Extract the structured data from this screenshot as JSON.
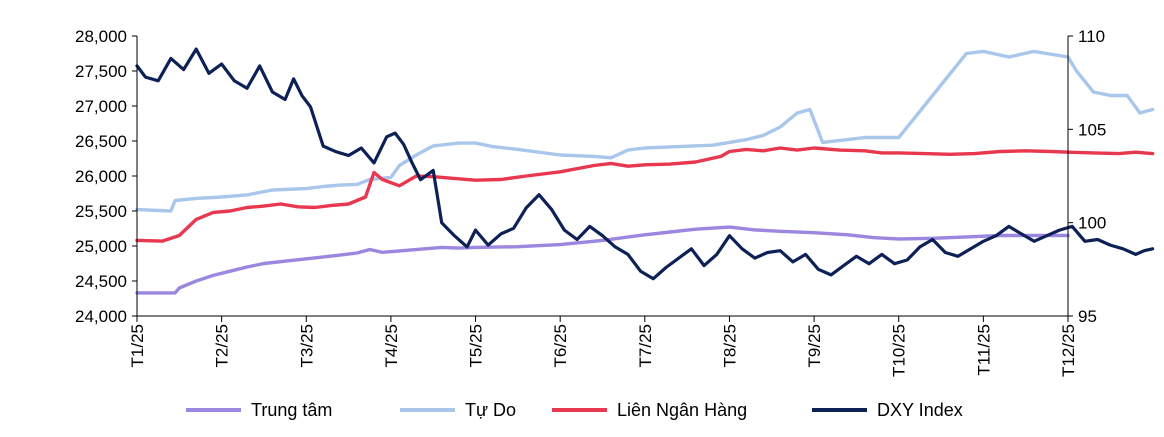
{
  "chart_data": {
    "type": "line",
    "title": "",
    "x_categories": [
      "T1/25",
      "T2/25",
      "T3/25",
      "T4/25",
      "T5/25",
      "T6/25",
      "T7/25",
      "T8/25",
      "T9/25",
      "T10/25",
      "T11/25",
      "T12/25"
    ],
    "y_left": {
      "min": 24000,
      "max": 28000,
      "ticks": [
        24000,
        24500,
        25000,
        25500,
        26000,
        26500,
        27000,
        27500,
        28000
      ],
      "tick_labels": [
        "24,000",
        "24,500",
        "25,000",
        "25,500",
        "26,000",
        "26,500",
        "27,000",
        "27,500",
        "28,000"
      ]
    },
    "y_right": {
      "min": 95,
      "max": 110,
      "ticks": [
        95,
        100,
        105,
        110
      ],
      "tick_labels": [
        "95",
        "100",
        "105",
        "110"
      ]
    },
    "legend_position": "bottom",
    "series": [
      {
        "name": "Trung tâm",
        "axis": "left",
        "color": "#9b87e0",
        "points": [
          [
            0,
            24330
          ],
          [
            0.45,
            24330
          ],
          [
            0.5,
            24400
          ],
          [
            0.7,
            24500
          ],
          [
            0.9,
            24580
          ],
          [
            1.1,
            24640
          ],
          [
            1.3,
            24700
          ],
          [
            1.5,
            24750
          ],
          [
            1.8,
            24790
          ],
          [
            2.1,
            24830
          ],
          [
            2.4,
            24870
          ],
          [
            2.6,
            24900
          ],
          [
            2.75,
            24950
          ],
          [
            2.9,
            24910
          ],
          [
            3.1,
            24930
          ],
          [
            3.4,
            24960
          ],
          [
            3.6,
            24980
          ],
          [
            3.8,
            24970
          ],
          [
            4.0,
            24980
          ],
          [
            4.5,
            24990
          ],
          [
            5.0,
            25020
          ],
          [
            5.5,
            25080
          ],
          [
            6.0,
            25160
          ],
          [
            6.3,
            25200
          ],
          [
            6.6,
            25240
          ],
          [
            7.0,
            25270
          ],
          [
            7.3,
            25230
          ],
          [
            7.6,
            25210
          ],
          [
            8.0,
            25190
          ],
          [
            8.4,
            25160
          ],
          [
            8.7,
            25120
          ],
          [
            9.0,
            25100
          ],
          [
            9.4,
            25110
          ],
          [
            9.8,
            25130
          ],
          [
            10.2,
            25150
          ],
          [
            10.6,
            25150
          ],
          [
            11.0,
            25150
          ]
        ]
      },
      {
        "name": "Tự Do",
        "axis": "left",
        "color": "#a9c7ea",
        "points": [
          [
            0,
            25520
          ],
          [
            0.4,
            25500
          ],
          [
            0.45,
            25650
          ],
          [
            0.7,
            25680
          ],
          [
            1.0,
            25700
          ],
          [
            1.3,
            25730
          ],
          [
            1.6,
            25800
          ],
          [
            2.0,
            25820
          ],
          [
            2.2,
            25850
          ],
          [
            2.4,
            25870
          ],
          [
            2.6,
            25880
          ],
          [
            2.75,
            25950
          ],
          [
            3.0,
            25980
          ],
          [
            3.1,
            26150
          ],
          [
            3.3,
            26300
          ],
          [
            3.5,
            26430
          ],
          [
            3.8,
            26470
          ],
          [
            4.0,
            26470
          ],
          [
            4.2,
            26420
          ],
          [
            4.5,
            26380
          ],
          [
            5.0,
            26300
          ],
          [
            5.4,
            26280
          ],
          [
            5.6,
            26260
          ],
          [
            5.8,
            26370
          ],
          [
            6.0,
            26400
          ],
          [
            6.4,
            26420
          ],
          [
            6.8,
            26440
          ],
          [
            7.0,
            26480
          ],
          [
            7.2,
            26520
          ],
          [
            7.4,
            26580
          ],
          [
            7.6,
            26700
          ],
          [
            7.8,
            26900
          ],
          [
            7.95,
            26950
          ],
          [
            8.1,
            26480
          ],
          [
            8.4,
            26520
          ],
          [
            8.6,
            26550
          ],
          [
            9.0,
            26550
          ],
          [
            9.2,
            26850
          ],
          [
            9.5,
            27300
          ],
          [
            9.8,
            27750
          ],
          [
            10.0,
            27780
          ],
          [
            10.3,
            27700
          ],
          [
            10.6,
            27780
          ],
          [
            11.0,
            27700
          ],
          [
            11.1,
            27500
          ],
          [
            11.3,
            27200
          ],
          [
            11.5,
            27150
          ],
          [
            11.7,
            27150
          ],
          [
            11.85,
            26900
          ],
          [
            12.0,
            26950
          ]
        ]
      },
      {
        "name": "Liên Ngân Hàng",
        "axis": "left",
        "color": "#e8384f",
        "points": [
          [
            0,
            25080
          ],
          [
            0.3,
            25070
          ],
          [
            0.5,
            25150
          ],
          [
            0.7,
            25380
          ],
          [
            0.9,
            25480
          ],
          [
            1.1,
            25500
          ],
          [
            1.3,
            25550
          ],
          [
            1.5,
            25570
          ],
          [
            1.7,
            25600
          ],
          [
            1.9,
            25560
          ],
          [
            2.1,
            25550
          ],
          [
            2.3,
            25580
          ],
          [
            2.5,
            25600
          ],
          [
            2.7,
            25700
          ],
          [
            2.8,
            26050
          ],
          [
            2.9,
            25950
          ],
          [
            3.1,
            25860
          ],
          [
            3.3,
            26000
          ],
          [
            3.5,
            25990
          ],
          [
            3.8,
            25960
          ],
          [
            4.0,
            25940
          ],
          [
            4.3,
            25950
          ],
          [
            4.6,
            26000
          ],
          [
            5.0,
            26060
          ],
          [
            5.4,
            26150
          ],
          [
            5.6,
            26180
          ],
          [
            5.8,
            26140
          ],
          [
            6.0,
            26160
          ],
          [
            6.3,
            26170
          ],
          [
            6.6,
            26200
          ],
          [
            6.9,
            26280
          ],
          [
            7.0,
            26350
          ],
          [
            7.2,
            26380
          ],
          [
            7.4,
            26360
          ],
          [
            7.6,
            26400
          ],
          [
            7.8,
            26370
          ],
          [
            8.0,
            26400
          ],
          [
            8.3,
            26370
          ],
          [
            8.6,
            26360
          ],
          [
            8.8,
            26330
          ],
          [
            9.0,
            26330
          ],
          [
            9.3,
            26320
          ],
          [
            9.6,
            26310
          ],
          [
            9.9,
            26320
          ],
          [
            10.2,
            26350
          ],
          [
            10.5,
            26360
          ],
          [
            10.8,
            26350
          ],
          [
            11.0,
            26340
          ],
          [
            11.3,
            26330
          ],
          [
            11.6,
            26320
          ],
          [
            11.8,
            26340
          ],
          [
            12.0,
            26320
          ]
        ]
      },
      {
        "name": "DXY Index",
        "axis": "right",
        "color": "#0d2157",
        "points": [
          [
            0,
            108.4
          ],
          [
            0.1,
            107.8
          ],
          [
            0.25,
            107.6
          ],
          [
            0.4,
            108.8
          ],
          [
            0.55,
            108.2
          ],
          [
            0.7,
            109.3
          ],
          [
            0.85,
            108.0
          ],
          [
            1.0,
            108.5
          ],
          [
            1.15,
            107.6
          ],
          [
            1.3,
            107.2
          ],
          [
            1.45,
            108.4
          ],
          [
            1.6,
            107.0
          ],
          [
            1.75,
            106.6
          ],
          [
            1.85,
            107.7
          ],
          [
            1.95,
            106.8
          ],
          [
            2.05,
            106.2
          ],
          [
            2.2,
            104.1
          ],
          [
            2.35,
            103.8
          ],
          [
            2.5,
            103.6
          ],
          [
            2.65,
            104.0
          ],
          [
            2.8,
            103.2
          ],
          [
            2.95,
            104.6
          ],
          [
            3.05,
            104.8
          ],
          [
            3.15,
            104.2
          ],
          [
            3.25,
            103.2
          ],
          [
            3.35,
            102.3
          ],
          [
            3.5,
            102.8
          ],
          [
            3.6,
            100.0
          ],
          [
            3.75,
            99.3
          ],
          [
            3.9,
            98.7
          ],
          [
            4.0,
            99.6
          ],
          [
            4.15,
            98.8
          ],
          [
            4.3,
            99.4
          ],
          [
            4.45,
            99.7
          ],
          [
            4.6,
            100.8
          ],
          [
            4.75,
            101.5
          ],
          [
            4.9,
            100.7
          ],
          [
            5.05,
            99.6
          ],
          [
            5.2,
            99.1
          ],
          [
            5.35,
            99.8
          ],
          [
            5.5,
            99.3
          ],
          [
            5.65,
            98.7
          ],
          [
            5.8,
            98.3
          ],
          [
            5.95,
            97.4
          ],
          [
            6.1,
            97.0
          ],
          [
            6.25,
            97.6
          ],
          [
            6.4,
            98.1
          ],
          [
            6.55,
            98.6
          ],
          [
            6.7,
            97.7
          ],
          [
            6.85,
            98.3
          ],
          [
            7.0,
            99.3
          ],
          [
            7.15,
            98.6
          ],
          [
            7.3,
            98.1
          ],
          [
            7.45,
            98.4
          ],
          [
            7.6,
            98.5
          ],
          [
            7.75,
            97.9
          ],
          [
            7.9,
            98.3
          ],
          [
            8.05,
            97.5
          ],
          [
            8.2,
            97.2
          ],
          [
            8.35,
            97.7
          ],
          [
            8.5,
            98.2
          ],
          [
            8.65,
            97.8
          ],
          [
            8.8,
            98.3
          ],
          [
            8.95,
            97.8
          ],
          [
            9.1,
            98.0
          ],
          [
            9.25,
            98.7
          ],
          [
            9.4,
            99.1
          ],
          [
            9.55,
            98.4
          ],
          [
            9.7,
            98.2
          ],
          [
            9.85,
            98.6
          ],
          [
            10.0,
            99.0
          ],
          [
            10.15,
            99.3
          ],
          [
            10.3,
            99.8
          ],
          [
            10.45,
            99.4
          ],
          [
            10.6,
            99.0
          ],
          [
            10.75,
            99.3
          ],
          [
            10.9,
            99.6
          ],
          [
            11.05,
            99.8
          ],
          [
            11.2,
            99.0
          ],
          [
            11.35,
            99.1
          ],
          [
            11.5,
            98.8
          ],
          [
            11.65,
            98.6
          ],
          [
            11.8,
            98.3
          ],
          [
            11.9,
            98.5
          ],
          [
            12.0,
            98.6
          ]
        ]
      }
    ]
  }
}
